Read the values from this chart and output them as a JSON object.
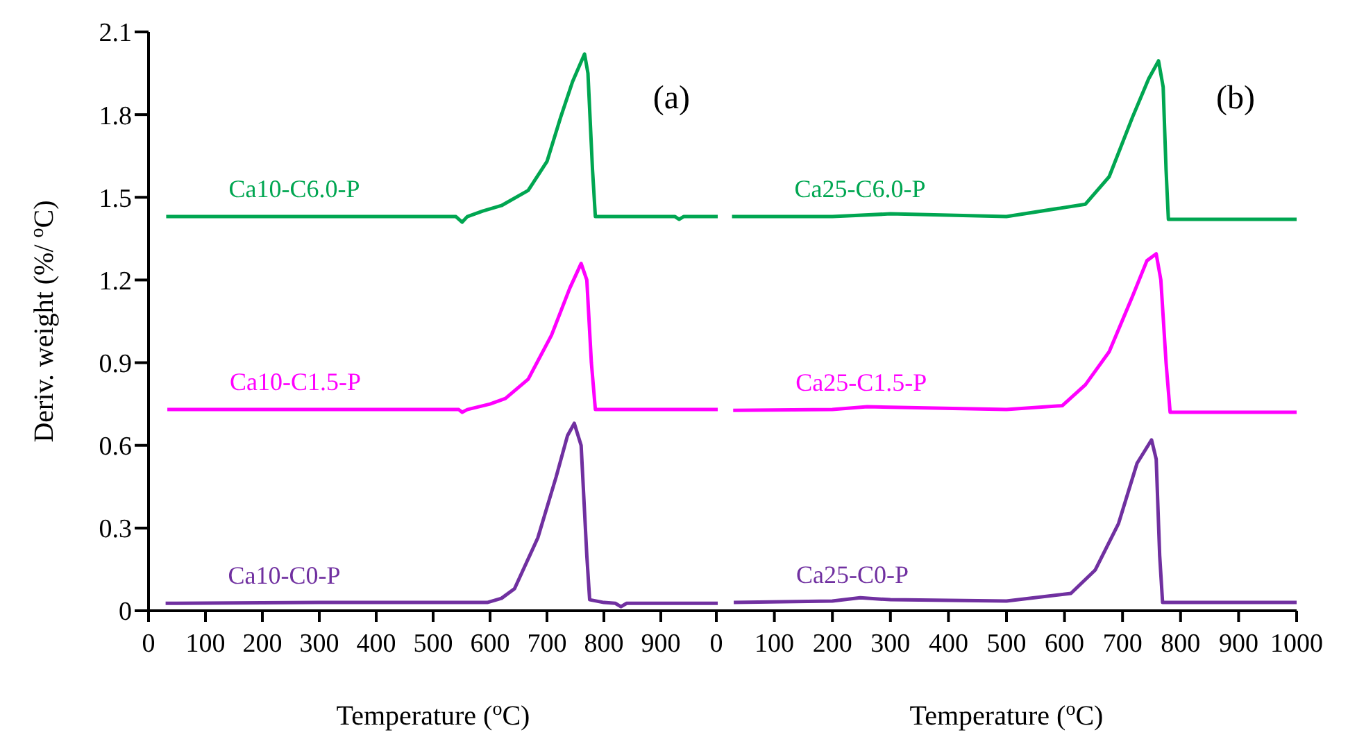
{
  "chart_data": [
    {
      "type": "line",
      "xlabel": "Temperature  ($^{o}$C)",
      "ylabel": "Deriv. weight (%/ $^{o}$C)",
      "annotations": [
        "(a)"
      ],
      "xlim": [
        0,
        1000
      ],
      "xticks": [
        0,
        100,
        200,
        300,
        400,
        500,
        600,
        700,
        800,
        900
      ],
      "ylim": [
        0,
        2.1
      ],
      "yticks": [
        0,
        0.3,
        0.6,
        0.9,
        1.2,
        1.5,
        1.8,
        2.1
      ],
      "marker": "none",
      "line_style": "solid",
      "series": [
        {
          "name": "Ca10-C6.0-P",
          "color": "#00a651",
          "x": [
            31,
            200,
            400,
            540,
            551,
            560,
            587,
            620,
            667,
            700,
            724,
            745,
            766,
            772,
            780,
            785,
            800,
            925,
            932,
            940,
            1000
          ],
          "values": [
            1.43,
            1.43,
            1.43,
            1.43,
            1.41,
            1.43,
            1.45,
            1.47,
            1.525,
            1.63,
            1.79,
            1.92,
            2.02,
            1.95,
            1.6,
            1.43,
            1.43,
            1.43,
            1.42,
            1.43,
            1.43
          ]
        },
        {
          "name": "Ca10-C1.5-P",
          "color": "#ff00ff",
          "x": [
            33,
            300,
            545,
            551,
            560,
            600,
            627,
            667,
            708,
            740,
            760,
            770,
            778,
            785,
            800,
            1000
          ],
          "values": [
            0.73,
            0.73,
            0.73,
            0.72,
            0.73,
            0.75,
            0.77,
            0.84,
            1.0,
            1.17,
            1.26,
            1.2,
            0.9,
            0.73,
            0.73,
            0.73
          ]
        },
        {
          "name": "Ca10-C0-P",
          "color": "#7030a0",
          "x": [
            30,
            300,
            500,
            595,
            620,
            643,
            684,
            716,
            736,
            748,
            760,
            770,
            775,
            800,
            820,
            830,
            840,
            1000
          ],
          "values": [
            0.027,
            0.03,
            0.03,
            0.03,
            0.045,
            0.08,
            0.265,
            0.485,
            0.635,
            0.68,
            0.6,
            0.2,
            0.04,
            0.03,
            0.027,
            0.015,
            0.027,
            0.027
          ]
        }
      ]
    },
    {
      "type": "line",
      "xlabel": "Temperature  ($^{o}$C)",
      "annotations": [
        "(b)"
      ],
      "xlim": [
        0,
        1000
      ],
      "xticks": [
        0,
        100,
        200,
        300,
        400,
        500,
        600,
        700,
        800,
        900,
        1000
      ],
      "ylim": [
        0,
        2.1
      ],
      "tick_labels": "x",
      "marker": "none",
      "line_style": "solid",
      "series": [
        {
          "name": "Ca25-C6.0-P",
          "color": "#00a651",
          "x": [
            27,
            200,
            300,
            500,
            636,
            677,
            717,
            745,
            762,
            770,
            775,
            779,
            800,
            1000
          ],
          "values": [
            1.43,
            1.43,
            1.44,
            1.43,
            1.475,
            1.575,
            1.79,
            1.93,
            1.995,
            1.9,
            1.6,
            1.42,
            1.42,
            1.42
          ]
        },
        {
          "name": "Ca25-C1.5-P",
          "color": "#ff00ff",
          "x": [
            29,
            200,
            260,
            500,
            596,
            636,
            677,
            717,
            742,
            758,
            766,
            775,
            782,
            800,
            1000
          ],
          "values": [
            0.727,
            0.73,
            0.74,
            0.73,
            0.744,
            0.82,
            0.94,
            1.14,
            1.27,
            1.295,
            1.2,
            0.9,
            0.72,
            0.72,
            0.72
          ]
        },
        {
          "name": "Ca25-C0-P",
          "color": "#7030a0",
          "x": [
            30,
            200,
            248,
            300,
            500,
            611,
            653,
            693,
            725,
            750,
            758,
            764,
            769,
            800,
            1000
          ],
          "values": [
            0.03,
            0.035,
            0.047,
            0.04,
            0.035,
            0.063,
            0.148,
            0.316,
            0.535,
            0.62,
            0.55,
            0.2,
            0.03,
            0.03,
            0.03
          ]
        }
      ]
    }
  ]
}
